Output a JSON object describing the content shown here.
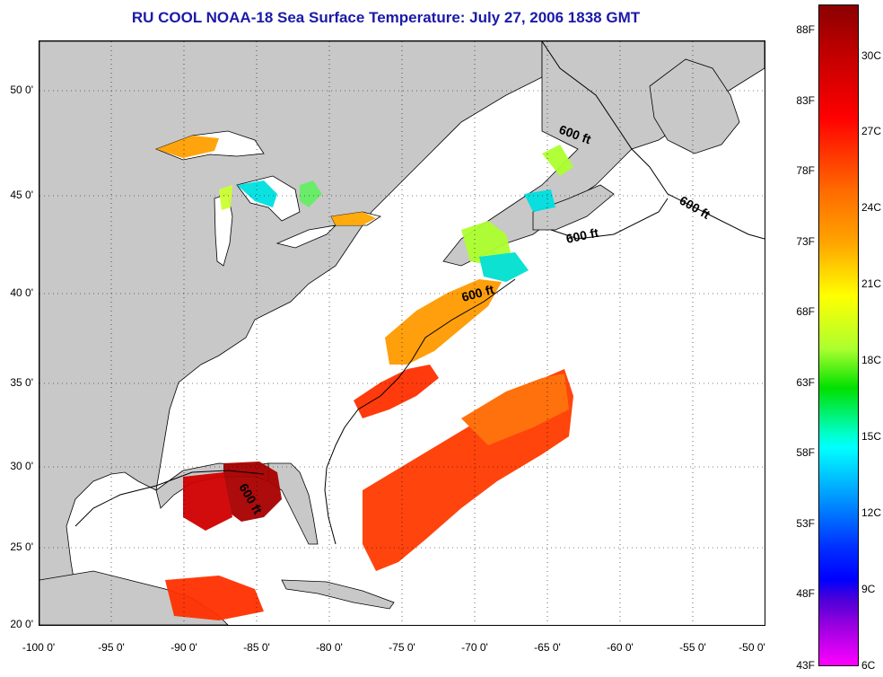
{
  "title": "RU COOL  NOAA-18  Sea Surface Temperature:  July 27, 2006 1838 GMT",
  "y_axis": [
    "50 0'",
    "45 0'",
    "40 0'",
    "35 0'",
    "30 0'",
    "25 0'",
    "20 0'"
  ],
  "x_axis": [
    "-100 0'",
    "-95 0'",
    "-90 0'",
    "-85 0'",
    "-80 0'",
    "-75 0'",
    "-70 0'",
    "-65 0'",
    "-60 0'",
    "-55 0'",
    "-50 0'"
  ],
  "contour_label": "600 ft",
  "colorbar": {
    "fahrenheit": [
      "88F",
      "83F",
      "78F",
      "73F",
      "68F",
      "63F",
      "58F",
      "53F",
      "48F",
      "43F"
    ],
    "celsius": [
      "30C",
      "27C",
      "24C",
      "21C",
      "18C",
      "15C",
      "12C",
      "9C",
      "6C"
    ]
  },
  "colors": {
    "land": "#c8c8c8",
    "ocean_no_data": "#ffffff",
    "title": "#1a1aa8",
    "warm_sst": "#ff2a00",
    "hot_sst": "#a80000",
    "mid_sst": "#ff9a00",
    "cool_sst": "#00e0e0"
  }
}
